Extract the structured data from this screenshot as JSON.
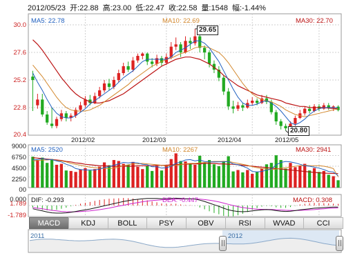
{
  "header": {
    "date": "2012/05/23",
    "open_label": "开:",
    "open": "22.88",
    "high_label": "高:",
    "high": "23.00",
    "low_label": "低:",
    "low": "22.47",
    "close_label": "收:",
    "close": "22.58",
    "volume_label": "量:",
    "volume": "1548",
    "change_label": "幅:",
    "change": "-1.44%"
  },
  "price_panel": {
    "ma5_label": "MA5: 22.78",
    "ma10_label": "MA10: 22.69",
    "ma30_label": "MA30: 22.70",
    "y_ticks": [
      "30.0",
      "27.6",
      "25.2",
      "22.8",
      "20.4"
    ],
    "x_ticks": [
      "2012/02",
      "2012/03",
      "2012/04",
      "2012/05"
    ],
    "high_callout": "29.65",
    "low_callout": "20.80"
  },
  "volume_panel": {
    "ma5_label": "MA5: 2520",
    "ma10_label": "MA10: 2267",
    "ma30_label": "MA30: 2941",
    "y_ticks": [
      "9000",
      "6750",
      "4500",
      "2250",
      "00"
    ]
  },
  "macd_panel": {
    "dif_label": "DIF: -0.293",
    "dea_label": "DEA: -0.447",
    "macd_label": "MACD: 0.308",
    "y_ticks": [
      "1.789",
      "0.000",
      "-1.789"
    ]
  },
  "indicator_tabs": [
    {
      "label": "MACD",
      "active": true
    },
    {
      "label": "KDJ"
    },
    {
      "label": "BOLL"
    },
    {
      "label": "PSY"
    },
    {
      "label": "OBV"
    },
    {
      "label": "RSI"
    },
    {
      "label": "WVAD"
    },
    {
      "label": "CCI"
    }
  ],
  "navigator": {
    "year_left": "2011",
    "year_right": "2012"
  },
  "colors": {
    "up": "#dd2222",
    "down": "#22aa22",
    "ma5": "#1f5fbf",
    "ma10": "#d2862a",
    "ma30": "#bb1111",
    "dif": "#111111",
    "dea": "#cc22cc",
    "accent_blue": "#3a6ea5"
  },
  "chart_data": {
    "type": "candlestick",
    "price_ylim": [
      20.4,
      30.0
    ],
    "volume_ylim": [
      0,
      9000
    ],
    "macd_ylim": [
      -1.789,
      1.789
    ],
    "candles": [
      [
        25.5,
        25.2,
        26.0,
        22.5
      ],
      [
        23.0,
        23.5,
        24.0,
        22.7
      ],
      [
        23.5,
        22.2,
        24.0,
        22.0
      ],
      [
        22.2,
        21.5,
        22.5,
        21.3
      ],
      [
        21.4,
        21.2,
        22.8,
        21.0
      ],
      [
        21.2,
        21.8,
        22.0,
        21.0
      ],
      [
        21.8,
        22.3,
        22.6,
        21.6
      ],
      [
        22.3,
        21.9,
        22.5,
        21.6
      ],
      [
        21.9,
        22.1,
        22.3,
        21.6
      ],
      [
        22.1,
        22.6,
        22.8,
        21.9
      ],
      [
        22.6,
        23.0,
        23.3,
        22.4
      ],
      [
        23.0,
        23.5,
        23.8,
        22.8
      ],
      [
        23.5,
        23.2,
        23.9,
        23.0
      ],
      [
        23.2,
        23.8,
        24.1,
        23.1
      ],
      [
        23.8,
        24.3,
        24.6,
        23.6
      ],
      [
        24.3,
        24.9,
        25.2,
        24.1
      ],
      [
        24.9,
        24.6,
        25.3,
        24.3
      ],
      [
        24.6,
        25.2,
        25.5,
        24.4
      ],
      [
        25.2,
        25.8,
        26.1,
        25.0
      ],
      [
        25.8,
        26.4,
        26.7,
        25.6
      ],
      [
        26.4,
        26.1,
        26.8,
        25.9
      ],
      [
        26.1,
        26.9,
        27.2,
        25.9
      ],
      [
        26.9,
        27.3,
        27.5,
        26.7
      ],
      [
        27.3,
        27.5,
        27.6,
        27.0
      ],
      [
        27.5,
        26.8,
        27.6,
        26.5
      ],
      [
        26.8,
        26.6,
        27.1,
        26.3
      ],
      [
        26.6,
        27.1,
        27.4,
        26.4
      ],
      [
        27.1,
        26.7,
        27.3,
        26.4
      ],
      [
        26.7,
        27.2,
        27.5,
        26.5
      ],
      [
        27.2,
        28.1,
        28.5,
        27.0
      ],
      [
        28.1,
        28.3,
        28.9,
        27.8
      ],
      [
        28.3,
        27.6,
        28.5,
        27.2
      ],
      [
        27.6,
        28.6,
        29.0,
        27.5
      ],
      [
        28.6,
        28.4,
        28.9,
        27.9
      ],
      [
        28.4,
        29.0,
        29.65,
        28.2
      ],
      [
        29.0,
        28.0,
        29.2,
        27.6
      ],
      [
        28.0,
        27.6,
        28.2,
        27.0
      ],
      [
        27.6,
        26.6,
        27.8,
        26.3
      ],
      [
        26.6,
        26.1,
        26.9,
        25.8
      ],
      [
        26.1,
        25.4,
        26.4,
        25.1
      ],
      [
        25.4,
        24.2,
        25.6,
        23.9
      ],
      [
        24.2,
        22.9,
        24.5,
        22.6
      ],
      [
        22.9,
        22.7,
        23.4,
        22.3
      ],
      [
        22.7,
        23.0,
        23.3,
        22.5
      ],
      [
        23.0,
        22.8,
        23.2,
        22.5
      ],
      [
        22.8,
        23.2,
        23.5,
        22.7
      ],
      [
        23.2,
        23.4,
        23.7,
        23.0
      ],
      [
        23.4,
        23.2,
        23.6,
        23.0
      ],
      [
        23.2,
        23.6,
        23.9,
        23.1
      ],
      [
        23.6,
        23.3,
        23.9,
        23.1
      ],
      [
        23.3,
        22.4,
        23.5,
        22.2
      ],
      [
        22.4,
        21.6,
        22.6,
        21.3
      ],
      [
        21.6,
        21.2,
        21.8,
        20.9
      ],
      [
        21.2,
        21.0,
        21.4,
        20.8
      ],
      [
        21.0,
        21.4,
        21.6,
        20.9
      ],
      [
        21.4,
        21.9,
        22.1,
        21.2
      ],
      [
        21.9,
        22.3,
        22.6,
        21.8
      ],
      [
        22.3,
        22.7,
        22.9,
        22.1
      ],
      [
        22.7,
        22.5,
        23.0,
        22.3
      ],
      [
        22.5,
        22.9,
        23.1,
        22.4
      ],
      [
        22.9,
        22.7,
        23.1,
        22.5
      ],
      [
        22.7,
        23.0,
        23.2,
        22.6
      ],
      [
        23.0,
        22.8,
        23.2,
        22.6
      ],
      [
        22.8,
        22.9,
        23.0,
        22.5
      ],
      [
        22.88,
        22.58,
        23.0,
        22.47
      ]
    ],
    "volumes": [
      6500,
      5800,
      6300,
      5200,
      6000,
      4800,
      5000,
      3600,
      3500,
      3300,
      3800,
      4100,
      3600,
      3900,
      4400,
      5300,
      4700,
      5800,
      5600,
      5000,
      4800,
      5400,
      4400,
      3900,
      4500,
      3500,
      4600,
      3600,
      4800,
      6000,
      7200,
      5600,
      5500,
      5000,
      4800,
      6700,
      5200,
      5800,
      4900,
      4500,
      5600,
      6600,
      3400,
      3700,
      3200,
      3700,
      2900,
      3300,
      4000,
      4900,
      5200,
      6800,
      5800,
      4000,
      5200,
      4300,
      4600,
      5000,
      3600,
      4100,
      3300,
      3500,
      2700,
      2400,
      1548
    ],
    "ma5": [
      25.8,
      25.0,
      24.3,
      23.5,
      22.8,
      22.3,
      22.0,
      21.9,
      21.9,
      22.1,
      22.4,
      22.7,
      23.1,
      23.4,
      23.7,
      24.0,
      24.3,
      24.6,
      25.0,
      25.4,
      25.7,
      26.0,
      26.4,
      26.8,
      27.0,
      27.0,
      27.0,
      27.0,
      27.0,
      27.2,
      27.6,
      27.8,
      28.0,
      28.3,
      28.6,
      28.6,
      28.4,
      28.0,
      27.4,
      26.8,
      26.0,
      25.2,
      24.4,
      23.7,
      23.2,
      23.0,
      23.0,
      23.1,
      23.3,
      23.4,
      23.2,
      22.9,
      22.5,
      22.0,
      21.5,
      21.3,
      21.5,
      21.8,
      22.2,
      22.5,
      22.7,
      22.8,
      22.8,
      22.8,
      22.78
    ],
    "ma10": [
      26.5,
      26.0,
      25.5,
      24.9,
      24.3,
      23.7,
      23.2,
      22.8,
      22.6,
      22.5,
      22.5,
      22.5,
      22.6,
      22.8,
      23.0,
      23.3,
      23.6,
      23.9,
      24.2,
      24.5,
      24.8,
      25.2,
      25.5,
      25.8,
      26.1,
      26.4,
      26.6,
      26.8,
      27.0,
      27.1,
      27.3,
      27.5,
      27.6,
      27.8,
      28.0,
      28.1,
      28.1,
      28.0,
      27.8,
      27.6,
      27.2,
      26.7,
      26.1,
      25.5,
      24.9,
      24.4,
      24.0,
      23.7,
      23.5,
      23.4,
      23.3,
      23.1,
      22.9,
      22.6,
      22.4,
      22.2,
      22.1,
      22.0,
      22.1,
      22.2,
      22.3,
      22.4,
      22.5,
      22.6,
      22.69
    ],
    "ma30": [
      28.7,
      28.3,
      27.8,
      27.2,
      26.6,
      26.0,
      25.4,
      24.9,
      24.4,
      24.0,
      23.7,
      23.5,
      23.3,
      23.2,
      23.2,
      23.3,
      23.4,
      23.6,
      23.8,
      24.0,
      24.3,
      24.6,
      24.9,
      25.2,
      25.5,
      25.8,
      26.1,
      26.4,
      26.6,
      26.8,
      27.0,
      27.1,
      27.2,
      27.2,
      27.1,
      27.0,
      26.8,
      26.6,
      26.3,
      26.0,
      25.6,
      25.3,
      25.0,
      24.7,
      24.5,
      24.3,
      24.1,
      23.9,
      23.8,
      23.7,
      23.6,
      23.5,
      23.4,
      23.2,
      23.1,
      23.0,
      22.9,
      22.9,
      22.8,
      22.8,
      22.8,
      22.8,
      22.75,
      22.72,
      22.7
    ],
    "vol_ma5": [
      5800,
      5900,
      6100,
      5900,
      5900,
      5600,
      5400,
      4900,
      4600,
      4000,
      3800,
      3700,
      3700,
      3700,
      3900,
      4200,
      4400,
      4700,
      5000,
      5300,
      5200,
      5300,
      5200,
      4900,
      4800,
      4400,
      4400,
      4100,
      4200,
      4500,
      5100,
      5400,
      5800,
      5900,
      5600,
      5800,
      5500,
      5400,
      5400,
      5400,
      5400,
      5500,
      5000,
      4800,
      4500,
      4100,
      3400,
      3300,
      3400,
      3700,
      3900,
      4800,
      5300,
      5500,
      5400,
      5200,
      4900,
      4600,
      4500,
      4300,
      4100,
      3800,
      3400,
      3300,
      2520
    ],
    "vol_ma10": [
      5600,
      5700,
      5800,
      5800,
      5900,
      5700,
      5600,
      5400,
      5100,
      4900,
      4700,
      4500,
      4300,
      4200,
      4100,
      4000,
      4000,
      4100,
      4300,
      4600,
      4800,
      5000,
      5000,
      5100,
      5000,
      4900,
      4800,
      4700,
      4600,
      4600,
      4700,
      4800,
      5000,
      5100,
      5100,
      5200,
      5300,
      5400,
      5500,
      5500,
      5500,
      5500,
      5300,
      5100,
      4900,
      4700,
      4400,
      4200,
      4000,
      3900,
      3800,
      3900,
      4100,
      4200,
      4300,
      4500,
      4600,
      4700,
      4600,
      4600,
      4600,
      4500,
      4300,
      4000,
      2267
    ],
    "vol_ma30": [
      6300,
      6200,
      6100,
      6000,
      5900,
      5800,
      5700,
      5500,
      5400,
      5200,
      5100,
      4900,
      4800,
      4700,
      4600,
      4600,
      4500,
      4500,
      4500,
      4500,
      4500,
      4500,
      4600,
      4600,
      4600,
      4600,
      4700,
      4700,
      4700,
      4800,
      4800,
      4900,
      4900,
      5000,
      5000,
      5000,
      5100,
      5100,
      5100,
      5000,
      5000,
      4900,
      4900,
      4800,
      4700,
      4600,
      4500,
      4400,
      4300,
      4200,
      4100,
      4000,
      3900,
      3800,
      3700,
      3600,
      3500,
      3400,
      3300,
      3200,
      3100,
      3050,
      3000,
      2970,
      2941
    ],
    "dif": [
      -0.6,
      -0.8,
      -1.0,
      -1.2,
      -1.35,
      -1.4,
      -1.4,
      -1.35,
      -1.25,
      -1.1,
      -0.95,
      -0.8,
      -0.65,
      -0.45,
      -0.25,
      -0.05,
      0.15,
      0.35,
      0.55,
      0.75,
      0.9,
      1.05,
      1.15,
      1.25,
      1.3,
      1.3,
      1.3,
      1.25,
      1.25,
      1.3,
      1.35,
      1.3,
      1.25,
      1.25,
      1.2,
      1.0,
      0.75,
      0.45,
      0.15,
      -0.15,
      -0.5,
      -0.8,
      -1.0,
      -1.1,
      -1.15,
      -1.1,
      -1.0,
      -0.9,
      -0.8,
      -0.75,
      -0.8,
      -0.95,
      -1.05,
      -1.1,
      -1.05,
      -0.95,
      -0.8,
      -0.7,
      -0.6,
      -0.5,
      -0.45,
      -0.38,
      -0.33,
      -0.3,
      -0.293
    ],
    "dea": [
      -0.4,
      -0.5,
      -0.6,
      -0.75,
      -0.9,
      -1.0,
      -1.1,
      -1.15,
      -1.18,
      -1.16,
      -1.12,
      -1.05,
      -0.98,
      -0.88,
      -0.77,
      -0.63,
      -0.48,
      -0.3,
      -0.12,
      0.05,
      0.22,
      0.4,
      0.55,
      0.7,
      0.82,
      0.92,
      1.0,
      1.06,
      1.1,
      1.14,
      1.18,
      1.2,
      1.21,
      1.22,
      1.22,
      1.18,
      1.1,
      0.98,
      0.84,
      0.66,
      0.45,
      0.22,
      0.0,
      -0.2,
      -0.38,
      -0.5,
      -0.6,
      -0.66,
      -0.7,
      -0.71,
      -0.73,
      -0.78,
      -0.83,
      -0.88,
      -0.91,
      -0.92,
      -0.9,
      -0.86,
      -0.81,
      -0.75,
      -0.68,
      -0.6,
      -0.53,
      -0.47,
      -0.447
    ]
  }
}
